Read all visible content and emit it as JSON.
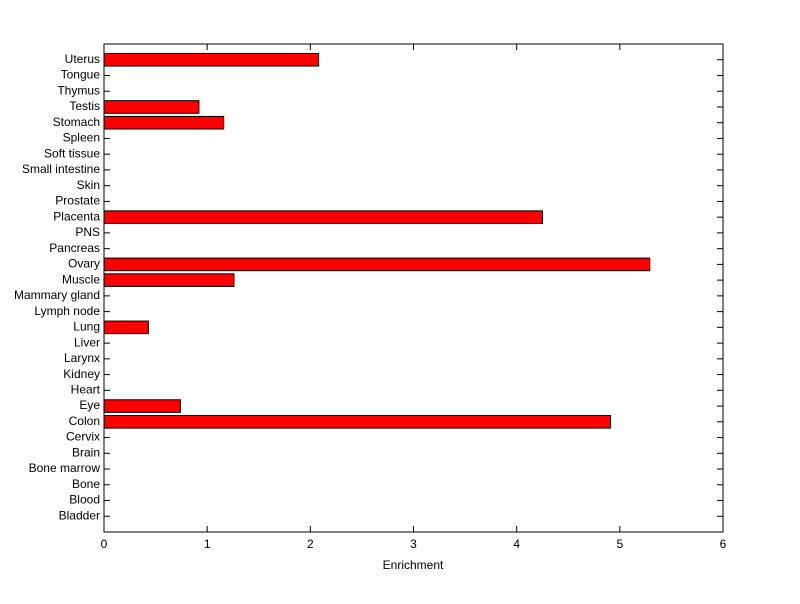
{
  "chart_data": {
    "type": "barh",
    "xlabel": "Enrichment",
    "categories": [
      "Bladder",
      "Blood",
      "Bone",
      "Bone marrow",
      "Brain",
      "Cervix",
      "Colon",
      "Eye",
      "Heart",
      "Kidney",
      "Larynx",
      "Liver",
      "Lung",
      "Lymph node",
      "Mammary gland",
      "Muscle",
      "Ovary",
      "Pancreas",
      "PNS",
      "Placenta",
      "Prostate",
      "Skin",
      "Small intestine",
      "Soft tissue",
      "Spleen",
      "Stomach",
      "Testis",
      "Thymus",
      "Tongue",
      "Uterus"
    ],
    "values": [
      0,
      0,
      0,
      0,
      0,
      0,
      4.91,
      0.74,
      0,
      0,
      0,
      0,
      0.43,
      0,
      0,
      1.26,
      5.29,
      0,
      0,
      4.25,
      0,
      0,
      0,
      0,
      0,
      1.16,
      0.92,
      0,
      0,
      2.08
    ],
    "color": "#ff0000",
    "xlim": [
      0,
      6
    ],
    "xticks": [
      0,
      1,
      2,
      3,
      4,
      5,
      6
    ]
  }
}
